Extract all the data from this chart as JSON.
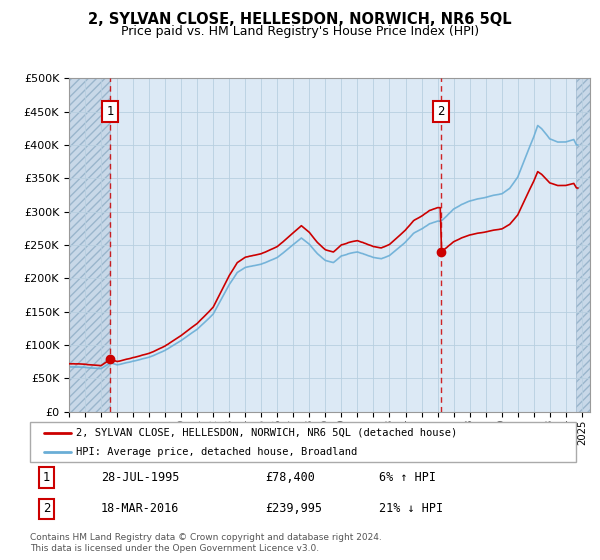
{
  "title": "2, SYLVAN CLOSE, HELLESDON, NORWICH, NR6 5QL",
  "subtitle": "Price paid vs. HM Land Registry's House Price Index (HPI)",
  "background_color": "#dce9f5",
  "hatch_color": "#c8d8e8",
  "grid_color": "#b8cfe0",
  "sale1_date": 1995.58,
  "sale1_price": 78400,
  "sale2_date": 2016.21,
  "sale2_price": 239995,
  "legend_line1": "2, SYLVAN CLOSE, HELLESDON, NORWICH, NR6 5QL (detached house)",
  "legend_line2": "HPI: Average price, detached house, Broadland",
  "annotation1_date": "28-JUL-1995",
  "annotation1_price": "£78,400",
  "annotation1_hpi": "6% ↑ HPI",
  "annotation2_date": "18-MAR-2016",
  "annotation2_price": "£239,995",
  "annotation2_hpi": "21% ↓ HPI",
  "footer": "Contains HM Land Registry data © Crown copyright and database right 2024.\nThis data is licensed under the Open Government Licence v3.0.",
  "hpi_color": "#6aaed6",
  "price_color": "#cc0000",
  "xmin": 1993.0,
  "xmax": 2025.5,
  "ymin": 0,
  "ymax": 500000,
  "yticks": [
    0,
    50000,
    100000,
    150000,
    200000,
    250000,
    300000,
    350000,
    400000,
    450000,
    500000
  ],
  "xticks": [
    1993,
    1994,
    1995,
    1996,
    1997,
    1998,
    1999,
    2000,
    2001,
    2002,
    2003,
    2004,
    2005,
    2006,
    2007,
    2008,
    2009,
    2010,
    2011,
    2012,
    2013,
    2014,
    2015,
    2016,
    2017,
    2018,
    2019,
    2020,
    2021,
    2022,
    2023,
    2024,
    2025
  ],
  "hatch_left_end": 1995.58,
  "hatch_right_start": 2024.67
}
